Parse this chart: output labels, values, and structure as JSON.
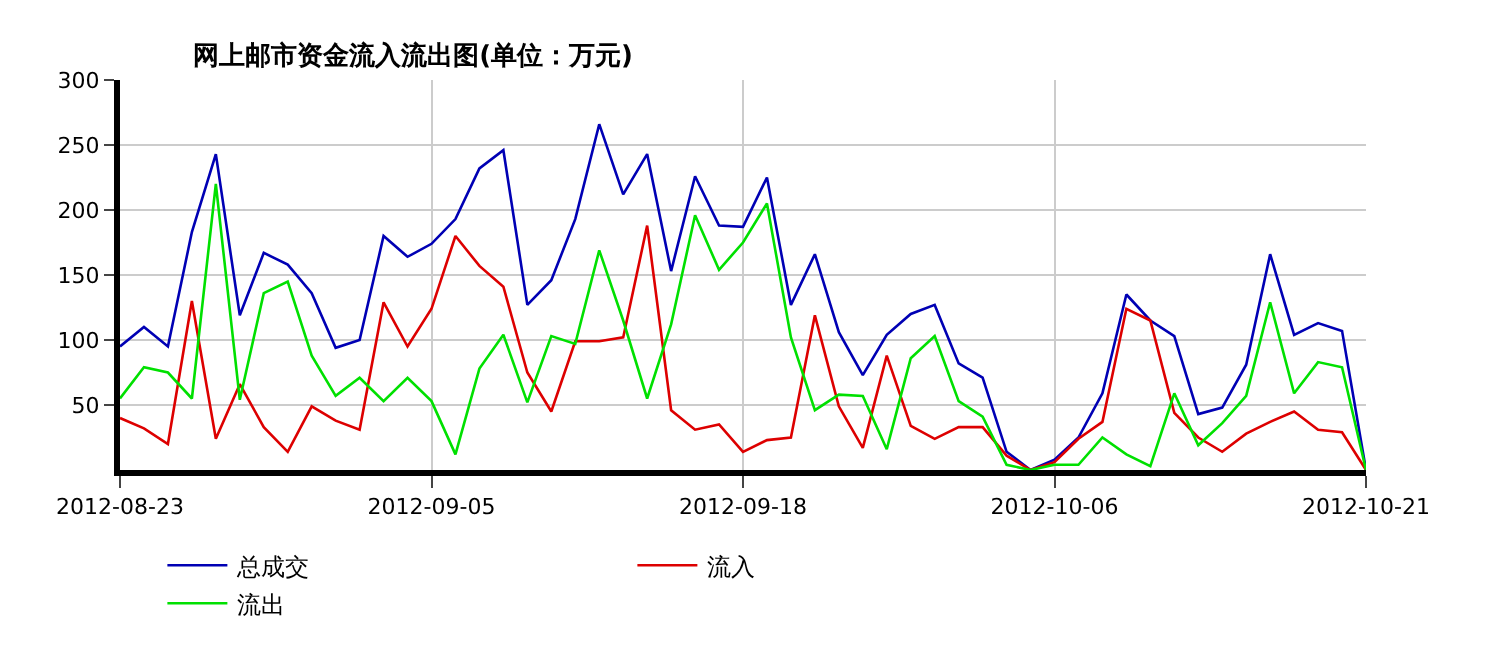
{
  "chart_data": {
    "type": "line",
    "title": "网上邮市资金流入流出图(单位：万元)",
    "categories": [
      "2012-08-23",
      null,
      null,
      null,
      null,
      null,
      null,
      null,
      null,
      null,
      null,
      null,
      null,
      "2012-09-05",
      null,
      null,
      null,
      null,
      null,
      null,
      null,
      null,
      null,
      null,
      null,
      null,
      "2012-09-18",
      null,
      null,
      null,
      null,
      null,
      null,
      null,
      null,
      null,
      null,
      null,
      null,
      "2012-10-06",
      null,
      null,
      null,
      null,
      null,
      null,
      null,
      null,
      null,
      null,
      null,
      null,
      "2012-10-21"
    ],
    "series": [
      {
        "name": "总成交",
        "color": "#0000b4",
        "values": [
          95,
          110,
          95,
          183,
          243,
          119,
          167,
          158,
          136,
          94,
          100,
          180,
          164,
          174,
          193,
          232,
          246,
          127,
          146,
          193,
          266,
          212,
          243,
          153,
          226,
          188,
          187,
          225,
          127,
          166,
          106,
          73,
          104,
          120,
          127,
          82,
          71,
          14,
          0,
          8,
          25,
          59,
          135,
          115,
          103,
          43,
          48,
          81,
          166,
          104,
          113,
          107,
          0
        ]
      },
      {
        "name": "流入",
        "color": "#dd0000",
        "values": [
          40,
          32,
          20,
          130,
          24,
          66,
          33,
          14,
          49,
          38,
          31,
          129,
          95,
          124,
          180,
          157,
          141,
          75,
          45,
          99,
          99,
          102,
          188,
          46,
          31,
          35,
          14,
          23,
          25,
          119,
          49,
          17,
          88,
          34,
          24,
          33,
          33,
          11,
          0,
          6,
          24,
          37,
          124,
          115,
          44,
          25,
          14,
          28,
          37,
          45,
          31,
          29,
          0
        ]
      },
      {
        "name": "流出",
        "color": "#00e000",
        "values": [
          55,
          79,
          75,
          55,
          220,
          54,
          136,
          145,
          88,
          57,
          71,
          53,
          71,
          53,
          12,
          78,
          104,
          52,
          103,
          97,
          169,
          115,
          55,
          112,
          196,
          154,
          175,
          205,
          102,
          46,
          58,
          57,
          16,
          86,
          103,
          53,
          41,
          4,
          0,
          4,
          4,
          25,
          12,
          3,
          59,
          19,
          36,
          57,
          129,
          59,
          83,
          79,
          0
        ]
      }
    ],
    "ylim": [
      0,
      300
    ],
    "yticks": [
      50,
      100,
      150,
      200,
      250,
      300
    ],
    "grid": true,
    "legend": "bottom left",
    "marker": "none",
    "line_style": "solid"
  }
}
